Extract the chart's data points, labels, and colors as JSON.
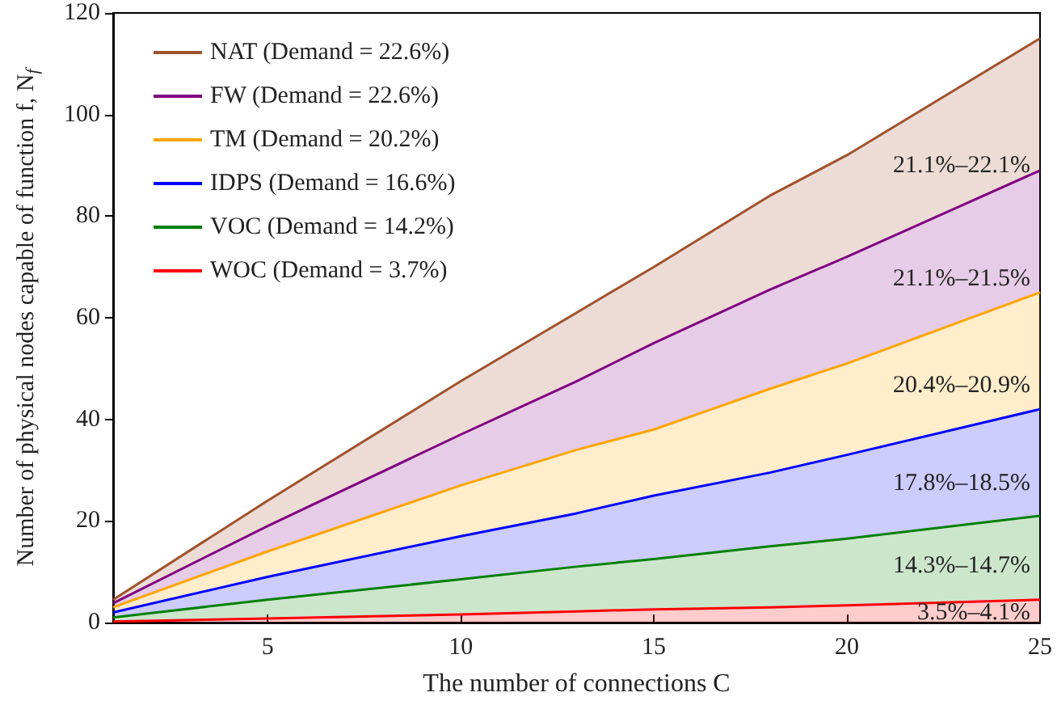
{
  "chart_data": {
    "type": "area",
    "stacked": true,
    "xlabel": "The number of connections C",
    "ylabel": "Number of physical nodes capable of function f, N$_{f}$",
    "x": [
      1,
      5,
      10,
      13,
      15,
      18,
      20,
      25
    ],
    "xlim": [
      1,
      25
    ],
    "xticks": [
      5,
      10,
      15,
      20,
      25
    ],
    "ylim": [
      0,
      120
    ],
    "yticks": [
      0,
      20,
      40,
      60,
      80,
      100,
      120
    ],
    "grid": false,
    "legend": "top left",
    "marker": "none",
    "line_style": "solid",
    "series": [
      {
        "name": "WOC (Demand = 3.7%)",
        "color": "#ff0000",
        "values": [
          0.2,
          0.8,
          1.6,
          2.2,
          2.6,
          3.0,
          3.4,
          4.5
        ]
      },
      {
        "name": "VOC (Demand = 14.2%)",
        "color": "#008000",
        "values": [
          0.8,
          3.7,
          6.9,
          8.8,
          9.9,
          12,
          13.1,
          16.5
        ]
      },
      {
        "name": "IDPS (Demand = 16.6%)",
        "color": "#0000ff",
        "values": [
          1,
          4.5,
          8.5,
          10.5,
          12.5,
          14.5,
          16.5,
          21
        ]
      },
      {
        "name": "TM (Demand = 20.2%)",
        "color": "#ffa500",
        "values": [
          1,
          5,
          10,
          12.5,
          13,
          16.5,
          18,
          23
        ]
      },
      {
        "name": "FW (Demand = 22.6%)",
        "color": "#800080",
        "values": [
          0.8,
          5,
          10,
          13.5,
          17,
          19.5,
          21,
          24
        ]
      },
      {
        "name": "NAT (Demand = 22.6%)",
        "color": "#a0522d",
        "values": [
          0.7,
          5,
          10.5,
          13.5,
          15,
          18.5,
          20,
          26
        ]
      }
    ],
    "annotations": [
      "21.1%–22.1%",
      "21.1%–21.5%",
      "20.4%–20.9%",
      "17.8%–18.5%",
      "14.3%–14.7%",
      "3.5%–4.1%"
    ]
  }
}
